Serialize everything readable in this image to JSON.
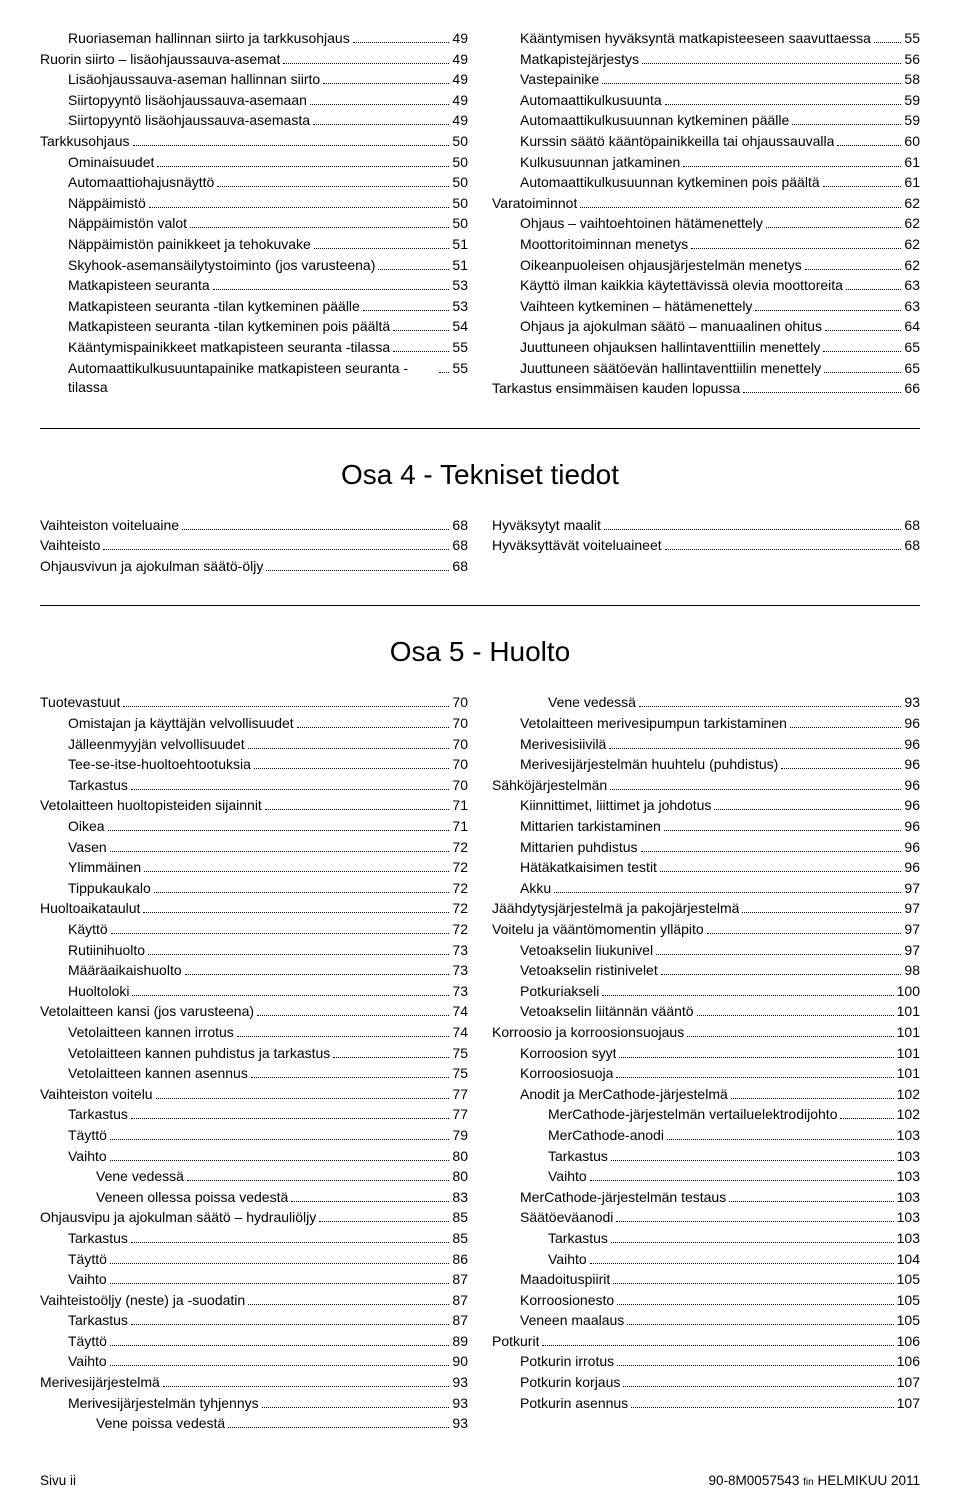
{
  "section1": {
    "left": [
      {
        "indent": 1,
        "label": "Ruoriaseman hallinnan siirto ja tarkkusohjaus",
        "page": "49"
      },
      {
        "indent": 0,
        "label": "Ruorin siirto – lisäohjaussauva-asemat",
        "page": "49"
      },
      {
        "indent": 1,
        "label": "Lisäohjaussauva-aseman hallinnan siirto",
        "page": "49"
      },
      {
        "indent": 1,
        "label": "Siirtopyyntö lisäohjaussauva-asemaan",
        "page": "49"
      },
      {
        "indent": 1,
        "label": "Siirtopyyntö lisäohjaussauva-asemasta",
        "page": "49"
      },
      {
        "indent": 0,
        "label": "Tarkkusohjaus",
        "page": "50"
      },
      {
        "indent": 1,
        "label": "Ominaisuudet",
        "page": "50"
      },
      {
        "indent": 1,
        "label": "Automaattiohajusnäyttö",
        "page": "50"
      },
      {
        "indent": 1,
        "label": "Näppäimistö",
        "page": "50"
      },
      {
        "indent": 1,
        "label": "Näppäimistön valot",
        "page": "50"
      },
      {
        "indent": 1,
        "label": "Näppäimistön painikkeet ja tehokuvake",
        "page": "51"
      },
      {
        "indent": 1,
        "label": "Skyhook-asemansäilytystoiminto (jos varusteena)",
        "page": "51"
      },
      {
        "indent": 1,
        "label": "Matkapisteen seuranta",
        "page": "53"
      },
      {
        "indent": 1,
        "label": "Matkapisteen seuranta -tilan kytkeminen päälle",
        "page": "53"
      },
      {
        "indent": 1,
        "label": "Matkapisteen seuranta -tilan kytkeminen pois päältä",
        "page": "54"
      },
      {
        "indent": 1,
        "label": "Kääntymispainikkeet matkapisteen seuranta -tilassa",
        "page": "55"
      },
      {
        "indent": 1,
        "label": "Automaattikulkusuuntapainike matkapisteen seuranta -tilassa",
        "page": "55"
      }
    ],
    "right": [
      {
        "indent": 1,
        "label": "Kääntymisen hyväksyntä matkapisteeseen saavuttaessa",
        "page": "55"
      },
      {
        "indent": 1,
        "label": "Matkapistejärjestys",
        "page": "56"
      },
      {
        "indent": 1,
        "label": "Vastepainike",
        "page": "58"
      },
      {
        "indent": 1,
        "label": "Automaattikulkusuunta",
        "page": "59"
      },
      {
        "indent": 1,
        "label": "Automaattikulkusuunnan kytkeminen päälle",
        "page": "59"
      },
      {
        "indent": 1,
        "label": "Kurssin säätö kääntöpainikkeilla tai ohjaussauvalla",
        "page": "60"
      },
      {
        "indent": 1,
        "label": "Kulkusuunnan jatkaminen",
        "page": "61"
      },
      {
        "indent": 1,
        "label": "Automaattikulkusuunnan kytkeminen pois päältä",
        "page": "61"
      },
      {
        "indent": 0,
        "label": "Varatoiminnot",
        "page": "62"
      },
      {
        "indent": 1,
        "label": "Ohjaus – vaihtoehtoinen hätämenettely",
        "page": "62"
      },
      {
        "indent": 1,
        "label": "Moottoritoiminnan menetys",
        "page": "62"
      },
      {
        "indent": 1,
        "label": "Oikeanpuoleisen ohjausjärjestelmän menetys",
        "page": "62"
      },
      {
        "indent": 1,
        "label": "Käyttö ilman kaikkia käytettävissä olevia moottoreita",
        "page": "63"
      },
      {
        "indent": 1,
        "label": "Vaihteen kytkeminen – hätämenettely",
        "page": "63"
      },
      {
        "indent": 1,
        "label": "Ohjaus ja ajokulman säätö – manuaalinen ohitus",
        "page": "64"
      },
      {
        "indent": 1,
        "label": "Juuttuneen ohjauksen hallintaventtiilin menettely",
        "page": "65"
      },
      {
        "indent": 1,
        "label": "Juuttuneen säätöevän hallintaventtiilin menettely",
        "page": "65"
      },
      {
        "indent": 0,
        "label": "Tarkastus ensimmäisen kauden lopussa",
        "page": "66"
      }
    ]
  },
  "section4_title": "Osa 4 - Tekniset tiedot",
  "section4": {
    "left": [
      {
        "indent": 0,
        "label": "Vaihteiston voiteluaine",
        "page": "68"
      },
      {
        "indent": 0,
        "label": "Vaihteisto",
        "page": "68"
      },
      {
        "indent": 0,
        "label": "Ohjausvivun ja ajokulman säätö-öljy",
        "page": "68"
      }
    ],
    "right": [
      {
        "indent": 0,
        "label": "Hyväksytyt maalit",
        "page": "68"
      },
      {
        "indent": 0,
        "label": "Hyväksyttävät voiteluaineet",
        "page": "68"
      }
    ]
  },
  "section5_title": "Osa 5 - Huolto",
  "section5": {
    "left": [
      {
        "indent": 0,
        "label": "Tuotevastuut",
        "page": "70"
      },
      {
        "indent": 1,
        "label": "Omistajan ja käyttäjän velvollisuudet",
        "page": "70"
      },
      {
        "indent": 1,
        "label": "Jälleenmyyjän velvollisuudet",
        "page": "70"
      },
      {
        "indent": 1,
        "label": "Tee-se-itse-huoltoehtootuksia",
        "page": "70"
      },
      {
        "indent": 1,
        "label": "Tarkastus",
        "page": "70"
      },
      {
        "indent": 0,
        "label": "Vetolaitteen huoltopisteiden sijainnit",
        "page": "71"
      },
      {
        "indent": 1,
        "label": "Oikea",
        "page": "71"
      },
      {
        "indent": 1,
        "label": "Vasen",
        "page": "72"
      },
      {
        "indent": 1,
        "label": "Ylimmäinen",
        "page": "72"
      },
      {
        "indent": 1,
        "label": "Tippukaukalo",
        "page": "72"
      },
      {
        "indent": 0,
        "label": "Huoltoaikataulut",
        "page": "72"
      },
      {
        "indent": 1,
        "label": "Käyttö",
        "page": "72"
      },
      {
        "indent": 1,
        "label": "Rutiinihuolto",
        "page": "73"
      },
      {
        "indent": 1,
        "label": "Määräaikaishuolto",
        "page": "73"
      },
      {
        "indent": 1,
        "label": "Huoltoloki",
        "page": "73"
      },
      {
        "indent": 0,
        "label": "Vetolaitteen kansi (jos varusteena)",
        "page": "74"
      },
      {
        "indent": 1,
        "label": "Vetolaitteen kannen irrotus",
        "page": "74"
      },
      {
        "indent": 1,
        "label": "Vetolaitteen kannen puhdistus ja tarkastus",
        "page": "75"
      },
      {
        "indent": 1,
        "label": "Vetolaitteen kannen asennus",
        "page": "75"
      },
      {
        "indent": 0,
        "label": "Vaihteiston voitelu",
        "page": "77"
      },
      {
        "indent": 1,
        "label": "Tarkastus",
        "page": "77"
      },
      {
        "indent": 1,
        "label": "Täyttö",
        "page": "79"
      },
      {
        "indent": 1,
        "label": "Vaihto",
        "page": "80"
      },
      {
        "indent": 2,
        "label": "Vene vedessä",
        "page": "80"
      },
      {
        "indent": 2,
        "label": "Veneen ollessa poissa vedestä",
        "page": "83"
      },
      {
        "indent": 0,
        "label": "Ohjausvipu ja ajokulman säätö – hydrauliöljy",
        "page": "85"
      },
      {
        "indent": 1,
        "label": "Tarkastus",
        "page": "85"
      },
      {
        "indent": 1,
        "label": "Täyttö",
        "page": "86"
      },
      {
        "indent": 1,
        "label": "Vaihto",
        "page": "87"
      },
      {
        "indent": 0,
        "label": "Vaihteistoöljy (neste) ja -suodatin",
        "page": "87"
      },
      {
        "indent": 1,
        "label": "Tarkastus",
        "page": "87"
      },
      {
        "indent": 1,
        "label": "Täyttö",
        "page": "89"
      },
      {
        "indent": 1,
        "label": "Vaihto",
        "page": "90"
      },
      {
        "indent": 0,
        "label": "Merivesijärjestelmä",
        "page": "93"
      },
      {
        "indent": 1,
        "label": "Merivesijärjestelmän tyhjennys",
        "page": "93"
      },
      {
        "indent": 2,
        "label": "Vene poissa vedestä",
        "page": "93"
      }
    ],
    "right": [
      {
        "indent": 2,
        "label": "Vene vedessä",
        "page": "93"
      },
      {
        "indent": 1,
        "label": "Vetolaitteen merivesipumpun tarkistaminen",
        "page": "96"
      },
      {
        "indent": 1,
        "label": "Merivesisiivilä",
        "page": "96"
      },
      {
        "indent": 1,
        "label": "Merivesijärjestelmän huuhtelu (puhdistus)",
        "page": "96"
      },
      {
        "indent": 0,
        "label": "Sähköjärjestelmän",
        "page": "96"
      },
      {
        "indent": 1,
        "label": "Kiinnittimet, liittimet ja johdotus",
        "page": "96"
      },
      {
        "indent": 1,
        "label": "Mittarien tarkistaminen",
        "page": "96"
      },
      {
        "indent": 1,
        "label": "Mittarien puhdistus",
        "page": "96"
      },
      {
        "indent": 1,
        "label": "Hätäkatkaisimen testit",
        "page": "96"
      },
      {
        "indent": 1,
        "label": "Akku",
        "page": "97"
      },
      {
        "indent": 0,
        "label": "Jäähdytysjärjestelmä ja pakojärjestelmä",
        "page": "97"
      },
      {
        "indent": 0,
        "label": "Voitelu ja vääntömomentin ylläpito",
        "page": "97"
      },
      {
        "indent": 1,
        "label": "Vetoakselin liukunivel",
        "page": "97"
      },
      {
        "indent": 1,
        "label": "Vetoakselin ristinivelet",
        "page": "98"
      },
      {
        "indent": 1,
        "label": "Potkuriakseli",
        "page": "100"
      },
      {
        "indent": 1,
        "label": "Vetoakselin liitännän vääntö",
        "page": "101"
      },
      {
        "indent": 0,
        "label": "Korroosio ja korroosionsuojaus",
        "page": "101"
      },
      {
        "indent": 1,
        "label": "Korroosion syyt",
        "page": "101"
      },
      {
        "indent": 1,
        "label": "Korroosiosuoja",
        "page": "101"
      },
      {
        "indent": 1,
        "label": "Anodit ja MerCathode-järjestelmä",
        "page": "102"
      },
      {
        "indent": 2,
        "label": "MerCathode-järjestelmän vertailuelektrodijohto",
        "page": "102"
      },
      {
        "indent": 2,
        "label": "MerCathode-anodi",
        "page": "103"
      },
      {
        "indent": 2,
        "label": "Tarkastus",
        "page": "103"
      },
      {
        "indent": 2,
        "label": "Vaihto",
        "page": "103"
      },
      {
        "indent": 1,
        "label": "MerCathode-järjestelmän testaus",
        "page": "103"
      },
      {
        "indent": 1,
        "label": "Säätöeväanodi",
        "page": "103"
      },
      {
        "indent": 2,
        "label": "Tarkastus",
        "page": "103"
      },
      {
        "indent": 2,
        "label": "Vaihto",
        "page": "104"
      },
      {
        "indent": 1,
        "label": "Maadoituspiirit",
        "page": "105"
      },
      {
        "indent": 1,
        "label": "Korroosionesto",
        "page": "105"
      },
      {
        "indent": 1,
        "label": "Veneen maalaus",
        "page": "105"
      },
      {
        "indent": 0,
        "label": "Potkurit",
        "page": "106"
      },
      {
        "indent": 1,
        "label": "Potkurin irrotus",
        "page": "106"
      },
      {
        "indent": 1,
        "label": "Potkurin korjaus",
        "page": "107"
      },
      {
        "indent": 1,
        "label": "Potkurin asennus",
        "page": "107"
      }
    ]
  },
  "footer": {
    "left": "Sivu  ii",
    "right_doc": "90-8M0057543",
    "right_lang": "fin",
    "right_date": "HELMIKUU  2011"
  }
}
